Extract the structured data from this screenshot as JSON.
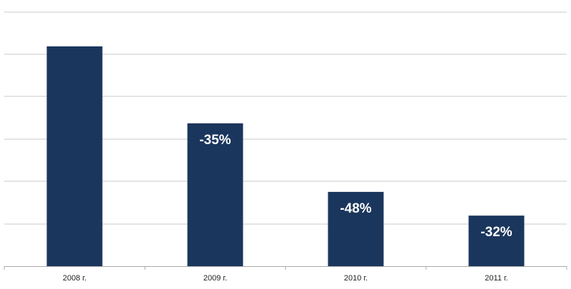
{
  "chart_data": {
    "type": "bar",
    "categories": [
      "2008 г.",
      "2009 г.",
      "2010 г.",
      "2011 г."
    ],
    "values": [
      100,
      65,
      33.8,
      23
    ],
    "data_labels": [
      "",
      "-35%",
      "-48%",
      "-32%"
    ],
    "ylim": [
      0,
      100
    ],
    "grid": true,
    "legend": "none",
    "colors": {
      "bar": "#1b365d",
      "grid": "#c8c8c8",
      "axis": "#a8a8a8",
      "label": "#ffffff"
    }
  }
}
